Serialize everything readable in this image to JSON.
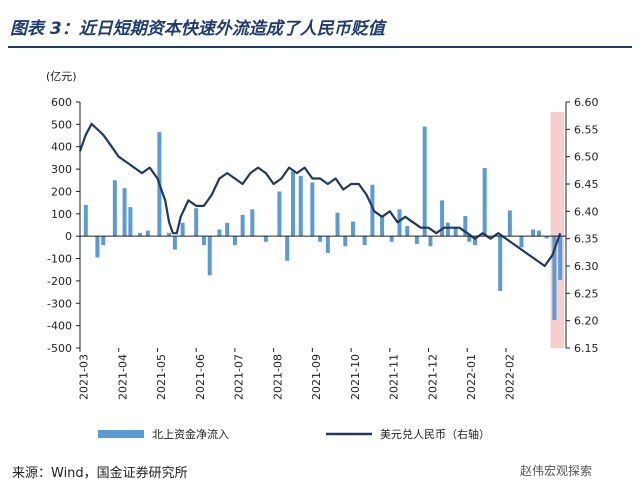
{
  "page": {
    "title": "图表 3：近日短期资本快速外流造成了人民币贬值",
    "source": "来源：Wind，国金证券研究所",
    "wechat": "赵伟宏观探索"
  },
  "colors": {
    "bar": "#5b9bd5",
    "line": "#1f3864",
    "highlight": "#f4c7c3",
    "axis": "#222222"
  },
  "chart_data": {
    "type": "bar+line",
    "ylabel_left": "(亿元)",
    "ylim_left": [
      -500,
      600
    ],
    "yticks_left": [
      600,
      500,
      400,
      300,
      200,
      100,
      0,
      -100,
      -200,
      -300,
      -400,
      -500
    ],
    "ylim_right": [
      6.15,
      6.6
    ],
    "yticks_right": [
      "6.60",
      "6.55",
      "6.50",
      "6.45",
      "6.40",
      "6.35",
      "6.30",
      "6.25",
      "6.20",
      "6.15"
    ],
    "x_labels": [
      "2021-03",
      "2021-04",
      "2021-05",
      "2021-06",
      "2021-07",
      "2021-08",
      "2021-09",
      "2021-10",
      "2021-11",
      "2021-12",
      "2022-01",
      "2022-02"
    ],
    "x_range": [
      0,
      12.55
    ],
    "highlight_x": [
      12.15,
      12.5
    ],
    "series": [
      {
        "name": "北上资金净流入",
        "type": "bar",
        "axis": "left",
        "x": [
          0.15,
          0.45,
          0.6,
          0.9,
          1.15,
          1.3,
          1.55,
          1.75,
          2.05,
          2.3,
          2.45,
          2.65,
          3.0,
          3.2,
          3.35,
          3.6,
          3.8,
          4.0,
          4.2,
          4.45,
          4.8,
          5.15,
          5.35,
          5.5,
          5.7,
          6.0,
          6.2,
          6.4,
          6.65,
          6.85,
          7.05,
          7.35,
          7.55,
          7.8,
          8.05,
          8.25,
          8.45,
          8.7,
          8.9,
          9.05,
          9.35,
          9.5,
          9.7,
          9.95,
          10.05,
          10.2,
          10.45,
          10.85,
          11.1,
          11.4,
          11.7,
          11.85,
          12.05,
          12.25,
          12.4
        ],
        "values": [
          140,
          -95,
          -40,
          250,
          215,
          130,
          15,
          25,
          465,
          15,
          -60,
          60,
          125,
          -40,
          -175,
          30,
          60,
          -40,
          95,
          120,
          -25,
          200,
          -110,
          290,
          270,
          240,
          -25,
          -75,
          105,
          -45,
          65,
          -40,
          230,
          85,
          -25,
          120,
          45,
          -35,
          490,
          -45,
          160,
          60,
          40,
          90,
          -25,
          -40,
          305,
          -245,
          115,
          -50,
          30,
          25,
          -10,
          -375,
          -195
        ]
      },
      {
        "name": "美元兑人民币（右轴）",
        "type": "line",
        "axis": "right",
        "x": [
          0,
          0.15,
          0.3,
          0.45,
          0.6,
          0.8,
          1.0,
          1.2,
          1.4,
          1.6,
          1.8,
          2.0,
          2.1,
          2.2,
          2.3,
          2.4,
          2.5,
          2.6,
          2.8,
          3.0,
          3.2,
          3.4,
          3.6,
          3.8,
          4.0,
          4.2,
          4.4,
          4.6,
          4.8,
          5.0,
          5.2,
          5.4,
          5.6,
          5.8,
          6.0,
          6.2,
          6.4,
          6.6,
          6.8,
          7.0,
          7.2,
          7.4,
          7.6,
          7.8,
          8.0,
          8.2,
          8.4,
          8.6,
          8.8,
          9.0,
          9.2,
          9.4,
          9.6,
          9.8,
          10.0,
          10.2,
          10.4,
          10.6,
          10.8,
          11.0,
          11.2,
          11.4,
          11.6,
          11.8,
          12.0,
          12.1,
          12.2,
          12.3,
          12.4
        ],
        "values": [
          6.51,
          6.54,
          6.56,
          6.55,
          6.54,
          6.52,
          6.5,
          6.49,
          6.48,
          6.47,
          6.48,
          6.46,
          6.44,
          6.42,
          6.38,
          6.36,
          6.36,
          6.39,
          6.42,
          6.41,
          6.41,
          6.43,
          6.46,
          6.47,
          6.46,
          6.45,
          6.47,
          6.48,
          6.47,
          6.45,
          6.46,
          6.48,
          6.47,
          6.48,
          6.46,
          6.46,
          6.45,
          6.46,
          6.44,
          6.45,
          6.45,
          6.43,
          6.4,
          6.39,
          6.4,
          6.38,
          6.39,
          6.38,
          6.37,
          6.37,
          6.36,
          6.37,
          6.37,
          6.37,
          6.36,
          6.35,
          6.36,
          6.35,
          6.36,
          6.35,
          6.34,
          6.33,
          6.32,
          6.31,
          6.3,
          6.31,
          6.32,
          6.34,
          6.36
        ]
      }
    ],
    "legend_position": "bottom"
  }
}
